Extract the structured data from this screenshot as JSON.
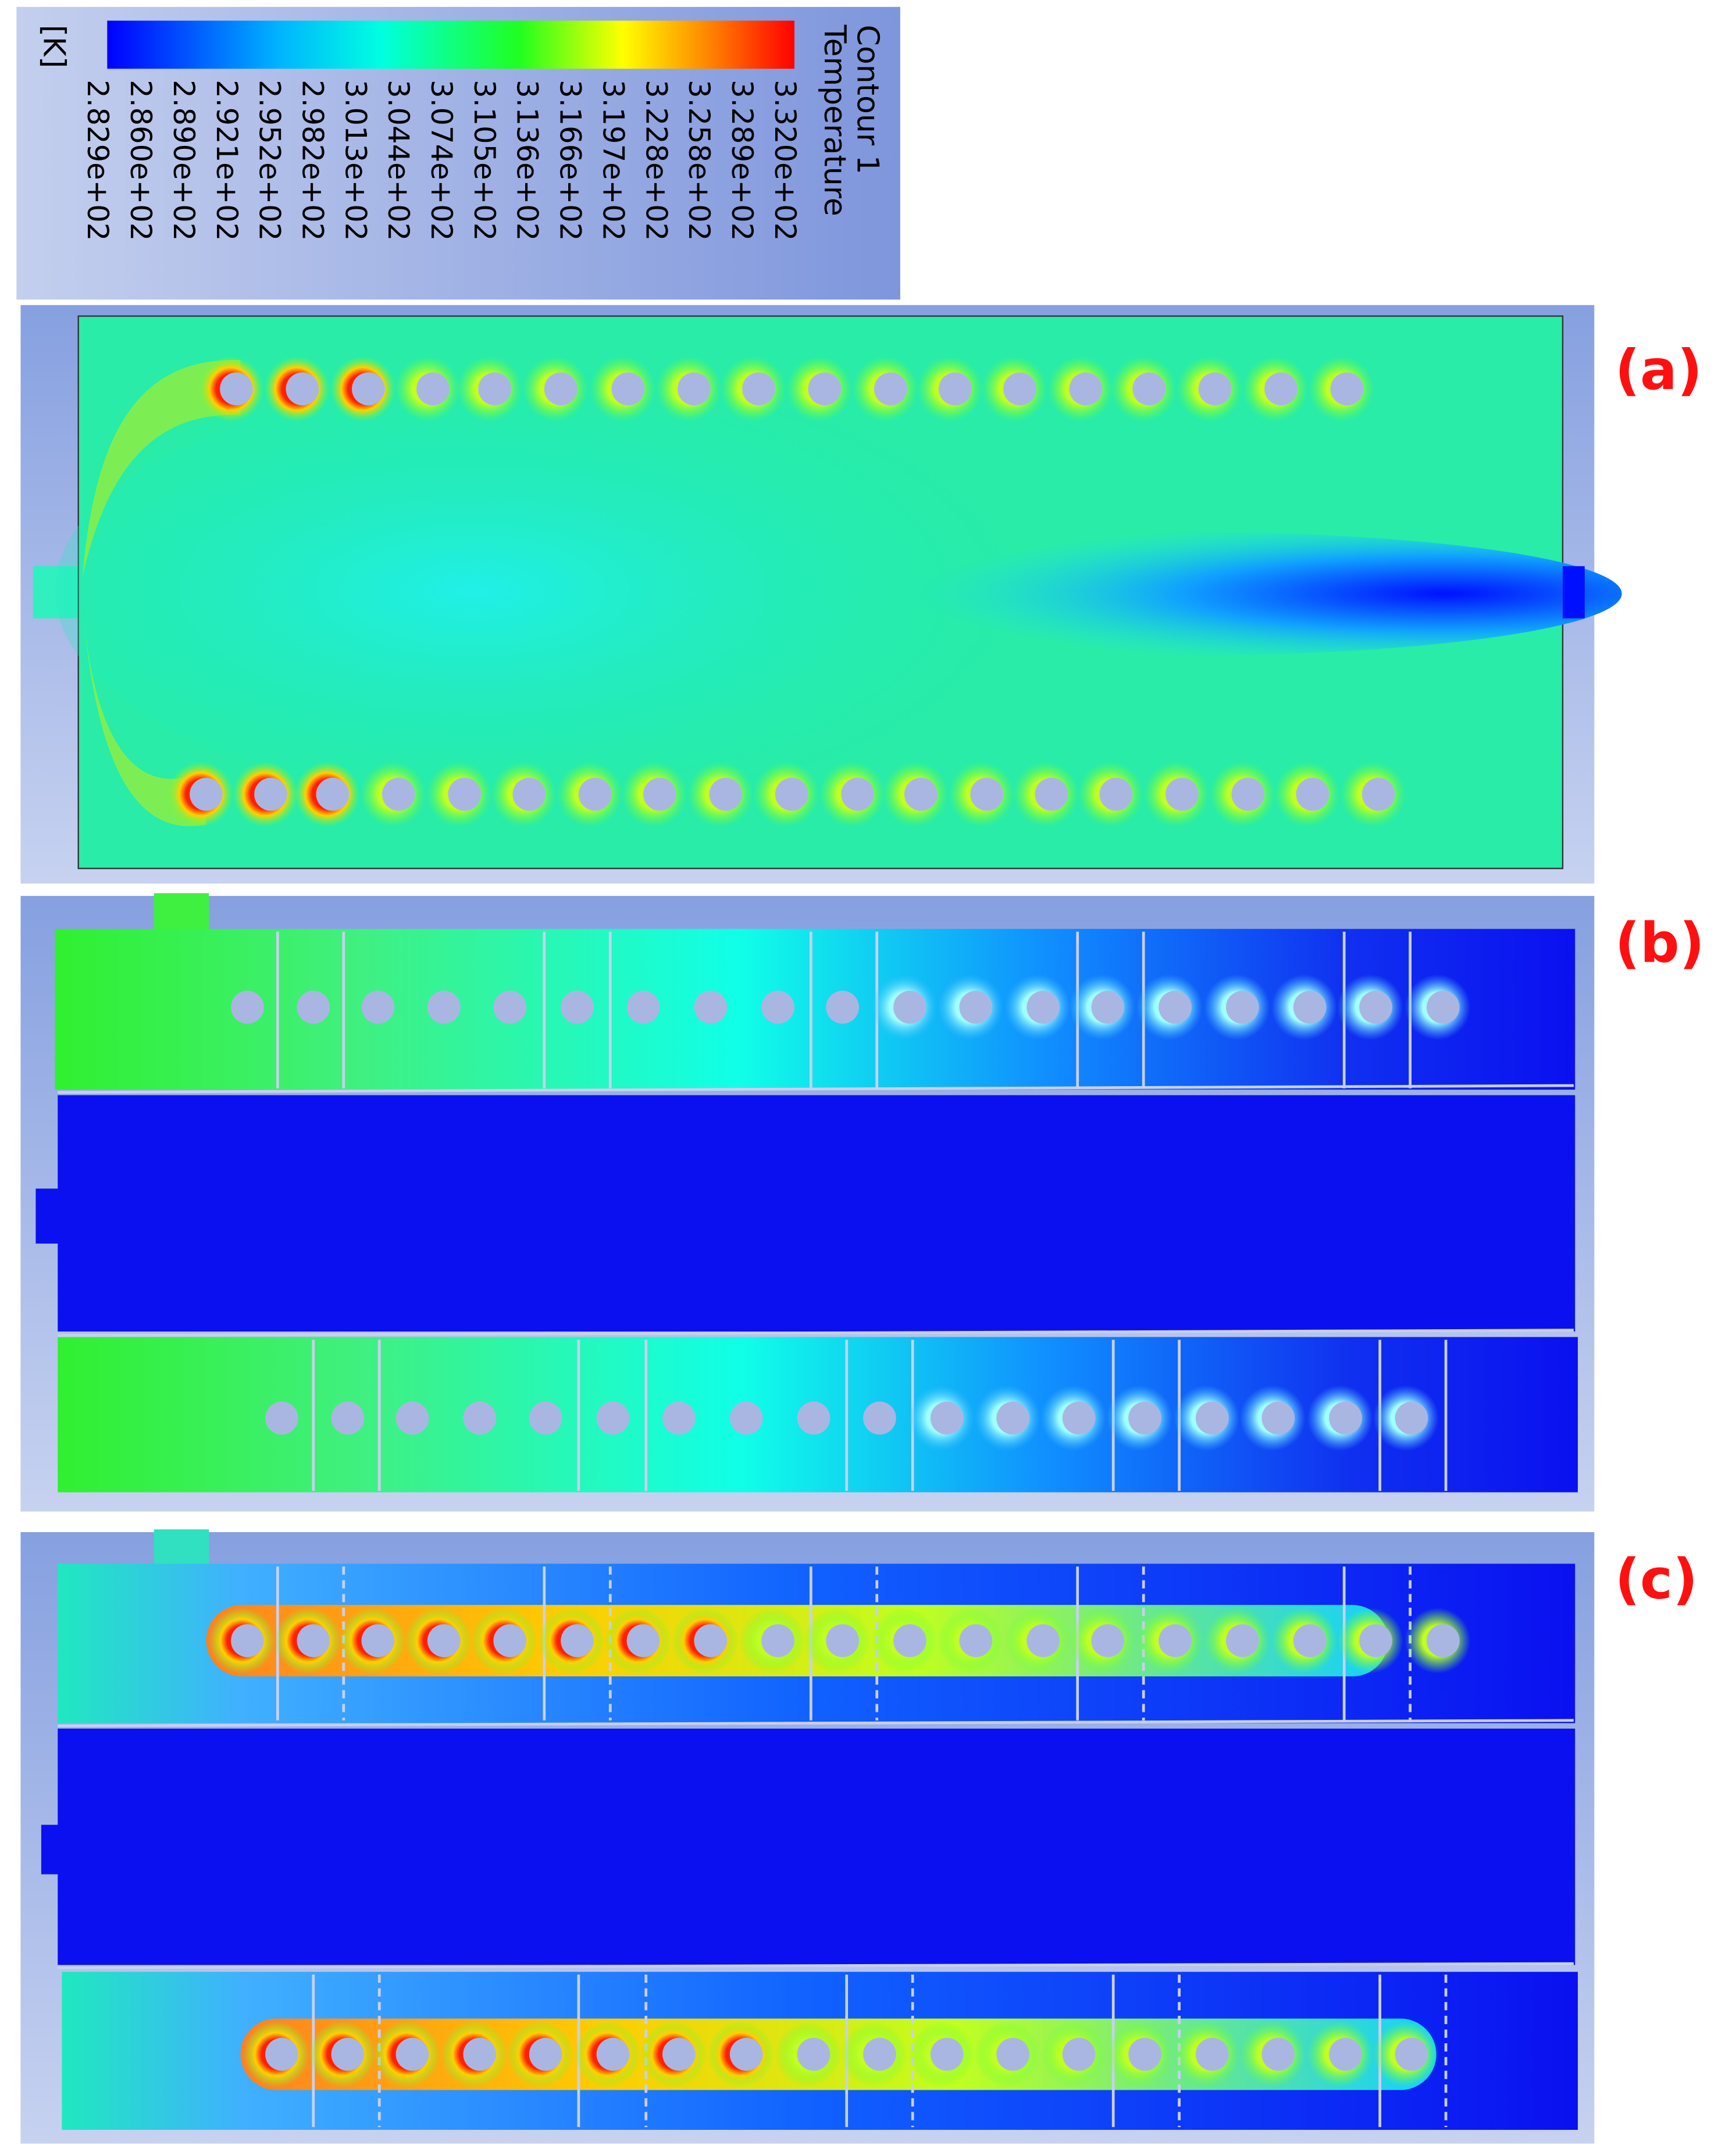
{
  "legend": {
    "title": [
      "Temperature",
      "Contour 1"
    ],
    "unit": "[K]",
    "ticks": [
      "2.829e+02",
      "2.860e+02",
      "2.890e+02",
      "2.921e+02",
      "2.952e+02",
      "2.982e+02",
      "3.013e+02",
      "3.044e+02",
      "3.074e+02",
      "3.105e+02",
      "3.136e+02",
      "3.166e+02",
      "3.197e+02",
      "3.228e+02",
      "3.258e+02",
      "3.289e+02",
      "3.320e+02"
    ]
  },
  "panels": [
    {
      "label": "(a)"
    },
    {
      "label": "(b)"
    },
    {
      "label": "(c)"
    }
  ]
}
